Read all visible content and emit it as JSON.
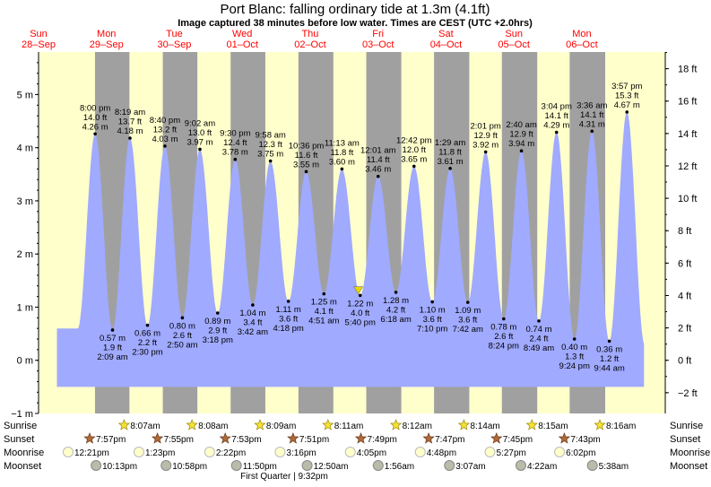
{
  "chart_data": {
    "type": "area",
    "title": "Port Blanc: falling  ordinary tide at 1.3m (4.1ft)",
    "subtitle": "Image captured 38 minutes before low water. Times are CEST (UTC +2.0hrs)",
    "y_left": {
      "unit": "m",
      "ylim": [
        -1,
        5.8
      ],
      "ticks": [
        -1,
        0,
        1,
        2,
        3,
        4,
        5
      ],
      "tick_labels": [
        "−1 m",
        "0 m",
        "1 m",
        "2 m",
        "3 m",
        "4 m",
        "5 m"
      ]
    },
    "y_right": {
      "unit": "ft",
      "ticks": [
        -2,
        0,
        2,
        4,
        6,
        8,
        10,
        12,
        14,
        16,
        18
      ],
      "tick_labels": [
        "−2 ft",
        "0 ft",
        "2 ft",
        "4 ft",
        "6 ft",
        "8 ft",
        "10 ft",
        "12 ft",
        "14 ft",
        "16 ft",
        "18 ft"
      ]
    },
    "x_range_hours": [
      0,
      221.5
    ],
    "days": [
      {
        "weekday": "Sun",
        "date": "28–Sep"
      },
      {
        "weekday": "Mon",
        "date": "29–Sep"
      },
      {
        "weekday": "Tue",
        "date": "30–Sep"
      },
      {
        "weekday": "Wed",
        "date": "01–Oct"
      },
      {
        "weekday": "Thu",
        "date": "02–Oct"
      },
      {
        "weekday": "Fri",
        "date": "03–Oct"
      },
      {
        "weekday": "Sat",
        "date": "04–Oct"
      },
      {
        "weekday": "Sun",
        "date": "05–Oct"
      },
      {
        "weekday": "Mon",
        "date": "06–Oct"
      }
    ],
    "tides": [
      {
        "t": 20.0,
        "type": "high",
        "time": "8:00 pm",
        "ft": "14.0 ft",
        "m": "4.26 m",
        "h": 4.26
      },
      {
        "t": 26.15,
        "type": "low",
        "time": "2:09 am",
        "ft": "1.9 ft",
        "m": "0.57 m",
        "h": 0.57
      },
      {
        "t": 32.32,
        "type": "high",
        "time": "8:19 am",
        "ft": "13.7 ft",
        "m": "4.18 m",
        "h": 4.18
      },
      {
        "t": 38.5,
        "type": "low",
        "time": "2:30 pm",
        "ft": "2.2 ft",
        "m": "0.66 m",
        "h": 0.66
      },
      {
        "t": 44.67,
        "type": "high",
        "time": "8:40 pm",
        "ft": "13.2 ft",
        "m": "4.03 m",
        "h": 4.03
      },
      {
        "t": 50.83,
        "type": "low",
        "time": "2:50 am",
        "ft": "2.6 ft",
        "m": "0.80 m",
        "h": 0.8
      },
      {
        "t": 57.03,
        "type": "high",
        "time": "9:02 am",
        "ft": "13.0 ft",
        "m": "3.97 m",
        "h": 3.97
      },
      {
        "t": 63.3,
        "type": "low",
        "time": "3:18 pm",
        "ft": "2.9 ft",
        "m": "0.89 m",
        "h": 0.89
      },
      {
        "t": 69.5,
        "type": "high",
        "time": "9:30 pm",
        "ft": "12.4 ft",
        "m": "3.78 m",
        "h": 3.78
      },
      {
        "t": 75.7,
        "type": "low",
        "time": "3:42 am",
        "ft": "3.4 ft",
        "m": "1.04 m",
        "h": 1.04
      },
      {
        "t": 81.97,
        "type": "high",
        "time": "9:58 am",
        "ft": "12.3 ft",
        "m": "3.75 m",
        "h": 3.75
      },
      {
        "t": 88.3,
        "type": "low",
        "time": "4:18 pm",
        "ft": "3.6 ft",
        "m": "1.11 m",
        "h": 1.11
      },
      {
        "t": 94.6,
        "type": "high",
        "time": "10:36 pm",
        "ft": "11.6 ft",
        "m": "3.55 m",
        "h": 3.55
      },
      {
        "t": 100.85,
        "type": "low",
        "time": "4:51 am",
        "ft": "4.1 ft",
        "m": "1.25 m",
        "h": 1.25
      },
      {
        "t": 107.22,
        "type": "high",
        "time": "11:13 am",
        "ft": "11.8 ft",
        "m": "3.60 m",
        "h": 3.6
      },
      {
        "t": 113.67,
        "type": "low",
        "time": "5:40 pm",
        "ft": "4.0 ft",
        "m": "1.22 m",
        "h": 1.22
      },
      {
        "t": 120.02,
        "type": "high",
        "time": "12:01 am",
        "ft": "11.4 ft",
        "m": "3.46 m",
        "h": 3.46
      },
      {
        "t": 126.3,
        "type": "low",
        "time": "6:18 am",
        "ft": "4.2 ft",
        "m": "1.28 m",
        "h": 1.28
      },
      {
        "t": 132.7,
        "type": "high",
        "time": "12:42 pm",
        "ft": "12.0 ft",
        "m": "3.65 m",
        "h": 3.65
      },
      {
        "t": 139.17,
        "type": "low",
        "time": "7:10 pm",
        "ft": "3.6 ft",
        "m": "1.10 m",
        "h": 1.1
      },
      {
        "t": 145.48,
        "type": "high",
        "time": "1:29 am",
        "ft": "11.8 ft",
        "m": "3.61 m",
        "h": 3.61
      },
      {
        "t": 151.7,
        "type": "low",
        "time": "7:42 am",
        "ft": "3.6 ft",
        "m": "1.09 m",
        "h": 1.09
      },
      {
        "t": 158.02,
        "type": "high",
        "time": "2:01 pm",
        "ft": "12.9 ft",
        "m": "3.92 m",
        "h": 3.92
      },
      {
        "t": 164.4,
        "type": "low",
        "time": "8:24 pm",
        "ft": "2.6 ft",
        "m": "0.78 m",
        "h": 0.78
      },
      {
        "t": 170.67,
        "type": "high",
        "time": "2:40 am",
        "ft": "12.9 ft",
        "m": "3.94 m",
        "h": 3.94
      },
      {
        "t": 176.82,
        "type": "low",
        "time": "8:49 am",
        "ft": "2.4 ft",
        "m": "0.74 m",
        "h": 0.74
      },
      {
        "t": 183.07,
        "type": "high",
        "time": "3:04 pm",
        "ft": "14.1 ft",
        "m": "4.29 m",
        "h": 4.29
      },
      {
        "t": 189.4,
        "type": "low",
        "time": "9:24 pm",
        "ft": "1.3 ft",
        "m": "0.40 m",
        "h": 0.4
      },
      {
        "t": 195.6,
        "type": "high",
        "time": "3:36 am",
        "ft": "14.1 ft",
        "m": "4.31 m",
        "h": 4.31
      },
      {
        "t": 201.73,
        "type": "low",
        "time": "9:44 am",
        "ft": "1.2 ft",
        "m": "0.36 m",
        "h": 0.36
      },
      {
        "t": 207.95,
        "type": "high",
        "time": "3:57 pm",
        "ft": "15.3 ft",
        "m": "4.67 m",
        "h": 4.67
      }
    ],
    "current": {
      "t": 113.0,
      "h": 1.3
    },
    "sunrise": [
      "8:07am",
      "8:08am",
      "8:09am",
      "8:11am",
      "8:12am",
      "8:14am",
      "8:15am",
      "8:16am"
    ],
    "sunset": [
      "7:57pm",
      "7:55pm",
      "7:53pm",
      "7:51pm",
      "7:49pm",
      "7:47pm",
      "7:45pm",
      "7:43pm"
    ],
    "moonrise": [
      "12:21pm",
      "1:23pm",
      "2:22pm",
      "3:16pm",
      "4:05pm",
      "4:48pm",
      "5:27pm",
      "6:02pm"
    ],
    "moonset": [
      "10:13pm",
      "10:58pm",
      "11:50pm",
      "12:50am",
      "1:56am",
      "3:07am",
      "4:22am",
      "5:38am"
    ],
    "row_labels": {
      "sunrise": "Sunrise",
      "sunset": "Sunset",
      "moonrise": "Moonrise",
      "moonset": "Moonset"
    },
    "moon_phase": "First Quarter | 9:32pm",
    "colors": {
      "day": "#ffffcc",
      "night": "#a0a0a0",
      "water": "#a0aaff",
      "date": "#ff0000",
      "grid_line": "#000000"
    }
  }
}
